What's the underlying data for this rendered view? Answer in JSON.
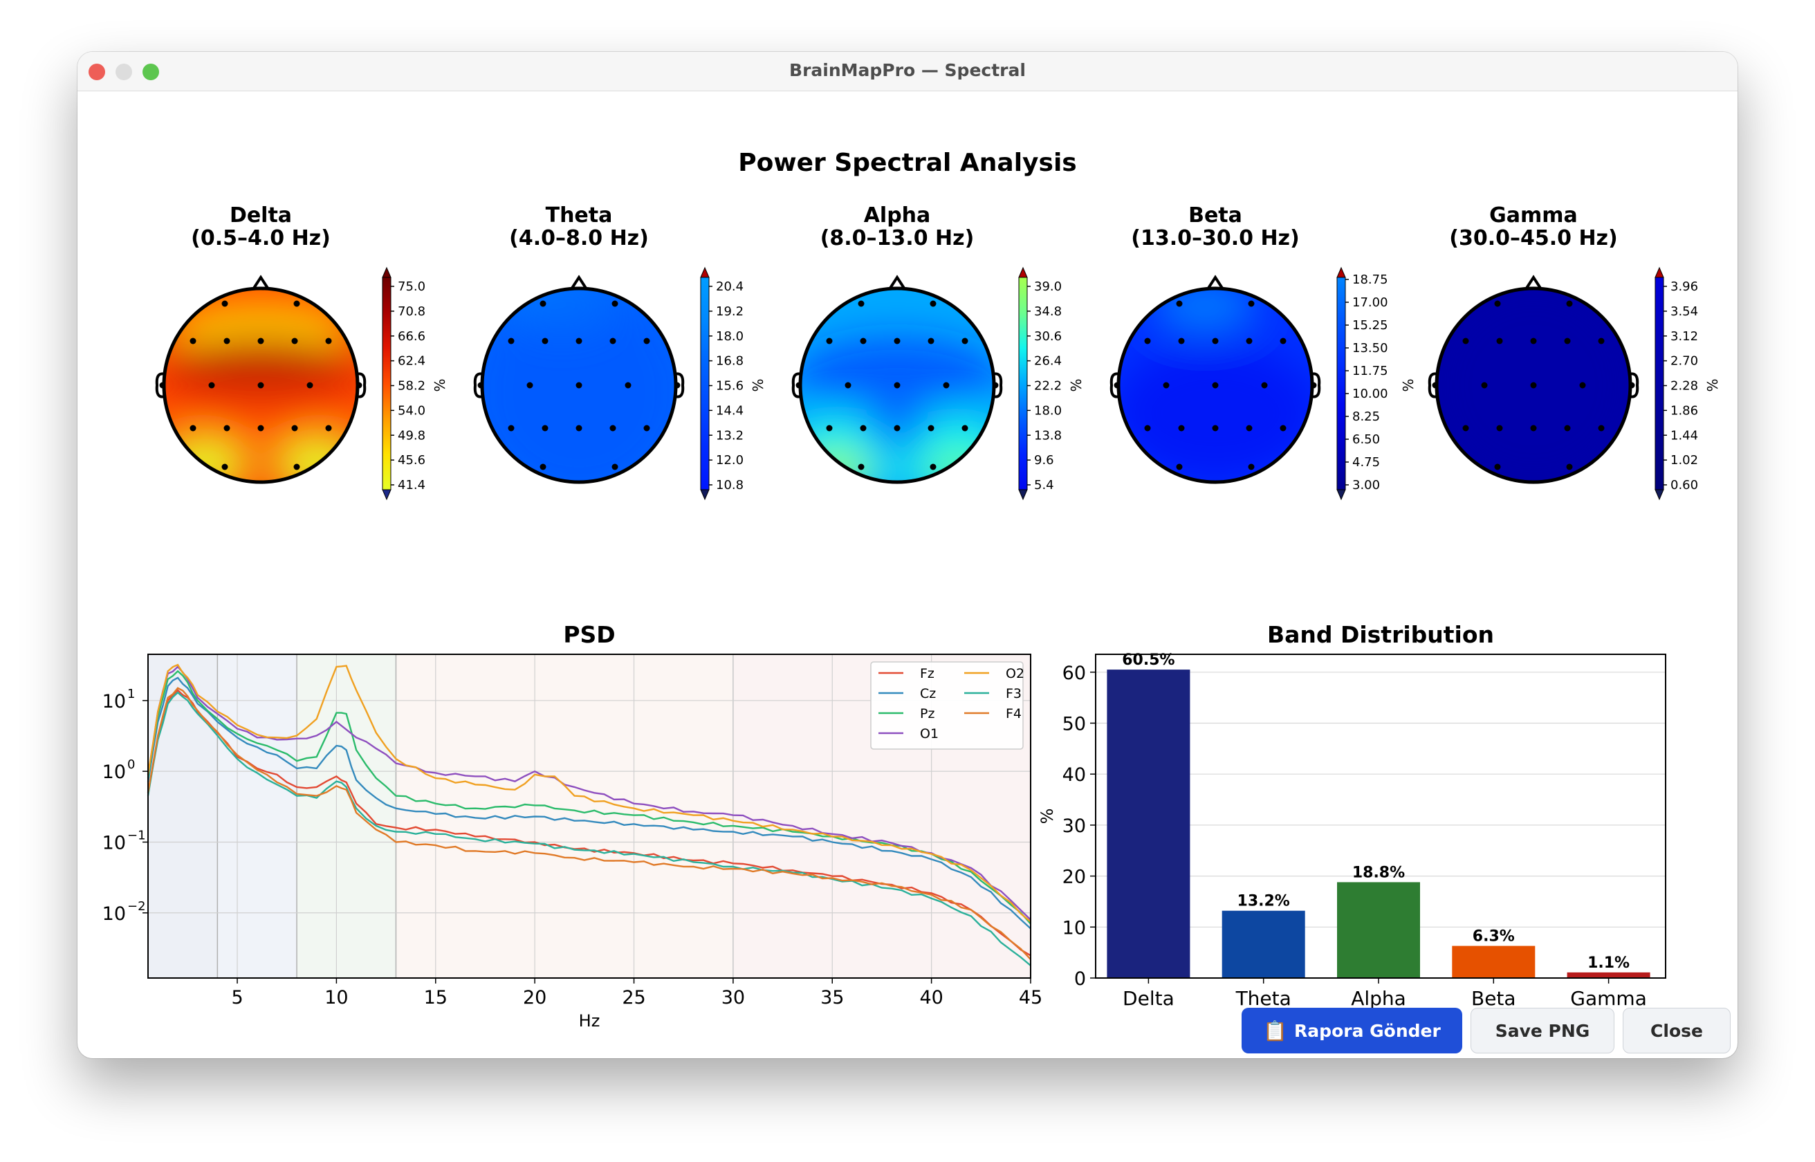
{
  "window": {
    "title": "BrainMapPro — Spectral"
  },
  "figure": {
    "title": "Power Spectral Analysis"
  },
  "topomaps": [
    {
      "name": "Delta",
      "range": "(0.5–4.0 Hz)",
      "ticks": [
        "75.0",
        "70.8",
        "66.6",
        "62.4",
        "58.2",
        "54.0",
        "49.8",
        "45.6",
        "41.4"
      ],
      "unit": "%",
      "cmap": [
        "#e6ff27",
        "#ffe100",
        "#ff9d00",
        "#ff4e00",
        "#e11600",
        "#a80000",
        "#6e0000"
      ]
    },
    {
      "name": "Theta",
      "range": "(4.0–8.0 Hz)",
      "ticks": [
        "20.4",
        "19.2",
        "18.0",
        "16.8",
        "15.6",
        "14.4",
        "13.2",
        "12.0",
        "10.8"
      ],
      "unit": "%",
      "cmap": [
        "#0016ff",
        "#002cff",
        "#004aff",
        "#0066ff",
        "#0088ff",
        "#009dff"
      ]
    },
    {
      "name": "Alpha",
      "range": "(8.0–13.0 Hz)",
      "ticks": [
        "39.0",
        "34.8",
        "30.6",
        "26.4",
        "22.2",
        "18.0",
        "13.8",
        "9.6",
        "5.4"
      ],
      "unit": "%",
      "cmap": [
        "#0008ef",
        "#0022ff",
        "#0060ff",
        "#00a8ff",
        "#12f4ee",
        "#6dff8e",
        "#a6ff4f"
      ]
    },
    {
      "name": "Beta",
      "range": "(13.0–30.0 Hz)",
      "ticks": [
        "18.75",
        "17.00",
        "15.25",
        "13.50",
        "11.75",
        "10.00",
        "8.25",
        "6.50",
        "4.75",
        "3.00"
      ],
      "unit": "%",
      "cmap": [
        "#00008f",
        "#0000c4",
        "#0008f0",
        "#0030ff",
        "#0058ff",
        "#0085ff"
      ]
    },
    {
      "name": "Gamma",
      "range": "(30.0–45.0 Hz)",
      "ticks": [
        "3.96",
        "3.54",
        "3.12",
        "2.70",
        "2.28",
        "1.86",
        "1.44",
        "1.02",
        "0.60"
      ],
      "unit": "%",
      "cmap": [
        "#00007a",
        "#000090",
        "#0000a8",
        "#0000c0",
        "#0000dc"
      ]
    }
  ],
  "chart_data": [
    {
      "type": "line",
      "title": "PSD",
      "xlabel": "Hz",
      "ylabel": "",
      "xlim": [
        0.5,
        45
      ],
      "ylim": [
        0.0012,
        45
      ],
      "yscale": "log",
      "xticks": [
        "5",
        "10",
        "15",
        "20",
        "25",
        "30",
        "35",
        "40",
        "45"
      ],
      "yticks": [
        {
          "mant": "10",
          "exp": "1"
        },
        {
          "mant": "10",
          "exp": "0"
        },
        {
          "mant": "10",
          "exp": "−1"
        },
        {
          "mant": "10",
          "exp": "−2"
        }
      ],
      "legend": "top-right",
      "bands": [
        {
          "from": 0.5,
          "to": 4,
          "color": "#4a6aa8"
        },
        {
          "from": 4,
          "to": 8,
          "color": "#6a88c0"
        },
        {
          "from": 8,
          "to": 13,
          "color": "#7fb27f"
        },
        {
          "from": 13,
          "to": 30,
          "color": "#e3a38a"
        },
        {
          "from": 30,
          "to": 45,
          "color": "#d88a86"
        }
      ],
      "series": [
        {
          "name": "Fz",
          "color": "#e24a33",
          "points": [
            [
              0.5,
              0.5
            ],
            [
              1,
              3
            ],
            [
              1.5,
              10
            ],
            [
              2,
              14
            ],
            [
              2.5,
              11
            ],
            [
              3,
              7
            ],
            [
              4,
              3.5
            ],
            [
              5,
              1.6
            ],
            [
              6,
              1.1
            ],
            [
              7,
              0.9
            ],
            [
              8,
              0.6
            ],
            [
              9,
              0.6
            ],
            [
              10,
              0.85
            ],
            [
              10.5,
              0.7
            ],
            [
              11,
              0.35
            ],
            [
              12,
              0.18
            ],
            [
              13,
              0.16
            ],
            [
              15,
              0.15
            ],
            [
              17,
              0.12
            ],
            [
              20,
              0.1
            ],
            [
              22,
              0.08
            ],
            [
              25,
              0.07
            ],
            [
              28,
              0.055
            ],
            [
              30,
              0.05
            ],
            [
              33,
              0.04
            ],
            [
              35,
              0.033
            ],
            [
              38,
              0.025
            ],
            [
              40,
              0.019
            ],
            [
              42,
              0.011
            ],
            [
              44,
              0.004
            ],
            [
              45,
              0.0025
            ]
          ]
        },
        {
          "name": "Cz",
          "color": "#348abd",
          "points": [
            [
              0.5,
              0.7
            ],
            [
              1,
              5
            ],
            [
              1.5,
              16
            ],
            [
              2,
              21
            ],
            [
              2.5,
              15
            ],
            [
              3,
              9
            ],
            [
              4,
              5
            ],
            [
              5,
              3
            ],
            [
              6,
              2.2
            ],
            [
              7,
              1.7
            ],
            [
              8,
              1.1
            ],
            [
              9,
              1.1
            ],
            [
              10,
              2.3
            ],
            [
              10.5,
              2
            ],
            [
              11,
              0.75
            ],
            [
              12,
              0.42
            ],
            [
              13,
              0.3
            ],
            [
              15,
              0.25
            ],
            [
              17,
              0.22
            ],
            [
              20,
              0.23
            ],
            [
              22,
              0.2
            ],
            [
              25,
              0.18
            ],
            [
              28,
              0.15
            ],
            [
              30,
              0.14
            ],
            [
              33,
              0.12
            ],
            [
              35,
              0.1
            ],
            [
              38,
              0.075
            ],
            [
              40,
              0.057
            ],
            [
              42,
              0.032
            ],
            [
              44,
              0.011
            ],
            [
              45,
              0.006
            ]
          ]
        },
        {
          "name": "Pz",
          "color": "#2bbb6b",
          "points": [
            [
              0.5,
              0.8
            ],
            [
              1,
              6
            ],
            [
              1.5,
              20
            ],
            [
              2,
              26
            ],
            [
              2.5,
              18
            ],
            [
              3,
              10
            ],
            [
              4,
              5.5
            ],
            [
              5,
              3.4
            ],
            [
              6,
              2.5
            ],
            [
              7,
              2
            ],
            [
              8,
              1.4
            ],
            [
              9,
              1.6
            ],
            [
              10,
              6.7
            ],
            [
              10.5,
              6.5
            ],
            [
              11,
              2
            ],
            [
              12,
              0.8
            ],
            [
              13,
              0.45
            ],
            [
              15,
              0.35
            ],
            [
              17,
              0.3
            ],
            [
              20,
              0.33
            ],
            [
              22,
              0.28
            ],
            [
              25,
              0.24
            ],
            [
              28,
              0.19
            ],
            [
              30,
              0.17
            ],
            [
              33,
              0.14
            ],
            [
              35,
              0.12
            ],
            [
              38,
              0.09
            ],
            [
              40,
              0.068
            ],
            [
              42,
              0.038
            ],
            [
              44,
              0.013
            ],
            [
              45,
              0.007
            ]
          ]
        },
        {
          "name": "O1",
          "color": "#8e4fbf",
          "points": [
            [
              0.5,
              0.9
            ],
            [
              1,
              7
            ],
            [
              1.5,
              24
            ],
            [
              2,
              30
            ],
            [
              2.5,
              20
            ],
            [
              3,
              11
            ],
            [
              4,
              6.5
            ],
            [
              5,
              4
            ],
            [
              6,
              3
            ],
            [
              7,
              2.8
            ],
            [
              8,
              2.9
            ],
            [
              9,
              3.2
            ],
            [
              10,
              5
            ],
            [
              11,
              3
            ],
            [
              12,
              2.1
            ],
            [
              13,
              1.3
            ],
            [
              15,
              0.95
            ],
            [
              17,
              0.85
            ],
            [
              19,
              0.72
            ],
            [
              20,
              1
            ],
            [
              22,
              0.6
            ],
            [
              25,
              0.35
            ],
            [
              28,
              0.27
            ],
            [
              30,
              0.24
            ],
            [
              33,
              0.17
            ],
            [
              35,
              0.13
            ],
            [
              38,
              0.097
            ],
            [
              40,
              0.07
            ],
            [
              42,
              0.043
            ],
            [
              44,
              0.015
            ],
            [
              45,
              0.008
            ]
          ]
        },
        {
          "name": "O2",
          "color": "#f0a020",
          "points": [
            [
              0.5,
              0.9
            ],
            [
              1,
              7
            ],
            [
              1.5,
              26
            ],
            [
              2,
              32
            ],
            [
              2.5,
              21
            ],
            [
              3,
              12
            ],
            [
              4,
              7
            ],
            [
              5,
              4.5
            ],
            [
              6,
              3.3
            ],
            [
              7,
              3
            ],
            [
              8,
              3.2
            ],
            [
              9,
              5.5
            ],
            [
              10,
              30
            ],
            [
              10.5,
              31
            ],
            [
              11,
              14
            ],
            [
              12,
              3.5
            ],
            [
              13,
              1.5
            ],
            [
              15,
              0.8
            ],
            [
              17,
              0.65
            ],
            [
              19,
              0.55
            ],
            [
              20,
              0.9
            ],
            [
              21,
              0.85
            ],
            [
              22,
              0.45
            ],
            [
              25,
              0.3
            ],
            [
              28,
              0.24
            ],
            [
              30,
              0.2
            ],
            [
              33,
              0.15
            ],
            [
              35,
              0.12
            ],
            [
              38,
              0.09
            ],
            [
              40,
              0.068
            ],
            [
              42,
              0.04
            ],
            [
              44,
              0.014
            ],
            [
              45,
              0.0075
            ]
          ]
        },
        {
          "name": "F3",
          "color": "#2ab09a",
          "points": [
            [
              0.5,
              0.45
            ],
            [
              1,
              2.8
            ],
            [
              1.5,
              9
            ],
            [
              2,
              13
            ],
            [
              2.5,
              10
            ],
            [
              3,
              6.5
            ],
            [
              4,
              3.2
            ],
            [
              5,
              1.5
            ],
            [
              6,
              0.95
            ],
            [
              7,
              0.65
            ],
            [
              8,
              0.45
            ],
            [
              9,
              0.42
            ],
            [
              10,
              0.72
            ],
            [
              10.5,
              0.6
            ],
            [
              11,
              0.3
            ],
            [
              12,
              0.17
            ],
            [
              13,
              0.14
            ],
            [
              15,
              0.13
            ],
            [
              17,
              0.11
            ],
            [
              20,
              0.095
            ],
            [
              22,
              0.078
            ],
            [
              25,
              0.068
            ],
            [
              28,
              0.052
            ],
            [
              30,
              0.045
            ],
            [
              33,
              0.037
            ],
            [
              35,
              0.03
            ],
            [
              38,
              0.022
            ],
            [
              40,
              0.016
            ],
            [
              42,
              0.009
            ],
            [
              44,
              0.003
            ],
            [
              45,
              0.0018
            ]
          ]
        },
        {
          "name": "F4",
          "color": "#e07a28",
          "points": [
            [
              0.5,
              0.5
            ],
            [
              1,
              3.2
            ],
            [
              1.5,
              11
            ],
            [
              2,
              15
            ],
            [
              2.5,
              11.5
            ],
            [
              3,
              7.2
            ],
            [
              4,
              3.6
            ],
            [
              5,
              1.7
            ],
            [
              6,
              1.05
            ],
            [
              7,
              0.7
            ],
            [
              8,
              0.48
            ],
            [
              9,
              0.45
            ],
            [
              10,
              0.62
            ],
            [
              10.5,
              0.55
            ],
            [
              11,
              0.26
            ],
            [
              12,
              0.15
            ],
            [
              13,
              0.1
            ],
            [
              15,
              0.09
            ],
            [
              17,
              0.075
            ],
            [
              20,
              0.07
            ],
            [
              22,
              0.06
            ],
            [
              25,
              0.052
            ],
            [
              28,
              0.045
            ],
            [
              30,
              0.042
            ],
            [
              33,
              0.036
            ],
            [
              35,
              0.031
            ],
            [
              38,
              0.024
            ],
            [
              40,
              0.018
            ],
            [
              42,
              0.011
            ],
            [
              44,
              0.004
            ],
            [
              45,
              0.0022
            ]
          ]
        }
      ]
    },
    {
      "type": "bar",
      "title": "Band Distribution",
      "ylabel": "%",
      "ylim": [
        0,
        63.5
      ],
      "yticks": [
        "0",
        "10",
        "20",
        "30",
        "40",
        "50",
        "60"
      ],
      "categories": [
        "Delta",
        "Theta",
        "Alpha",
        "Beta",
        "Gamma"
      ],
      "values": [
        60.5,
        13.2,
        18.8,
        6.3,
        1.1
      ],
      "labels": [
        "60.5%",
        "13.2%",
        "18.8%",
        "6.3%",
        "1.1%"
      ],
      "colors": [
        "#1a237e",
        "#0d47a1",
        "#2e7d32",
        "#e65100",
        "#b71c1c"
      ]
    }
  ],
  "buttons": {
    "report_icon": "📋",
    "report": "Rapora Gönder",
    "save": "Save PNG",
    "close": "Close"
  }
}
